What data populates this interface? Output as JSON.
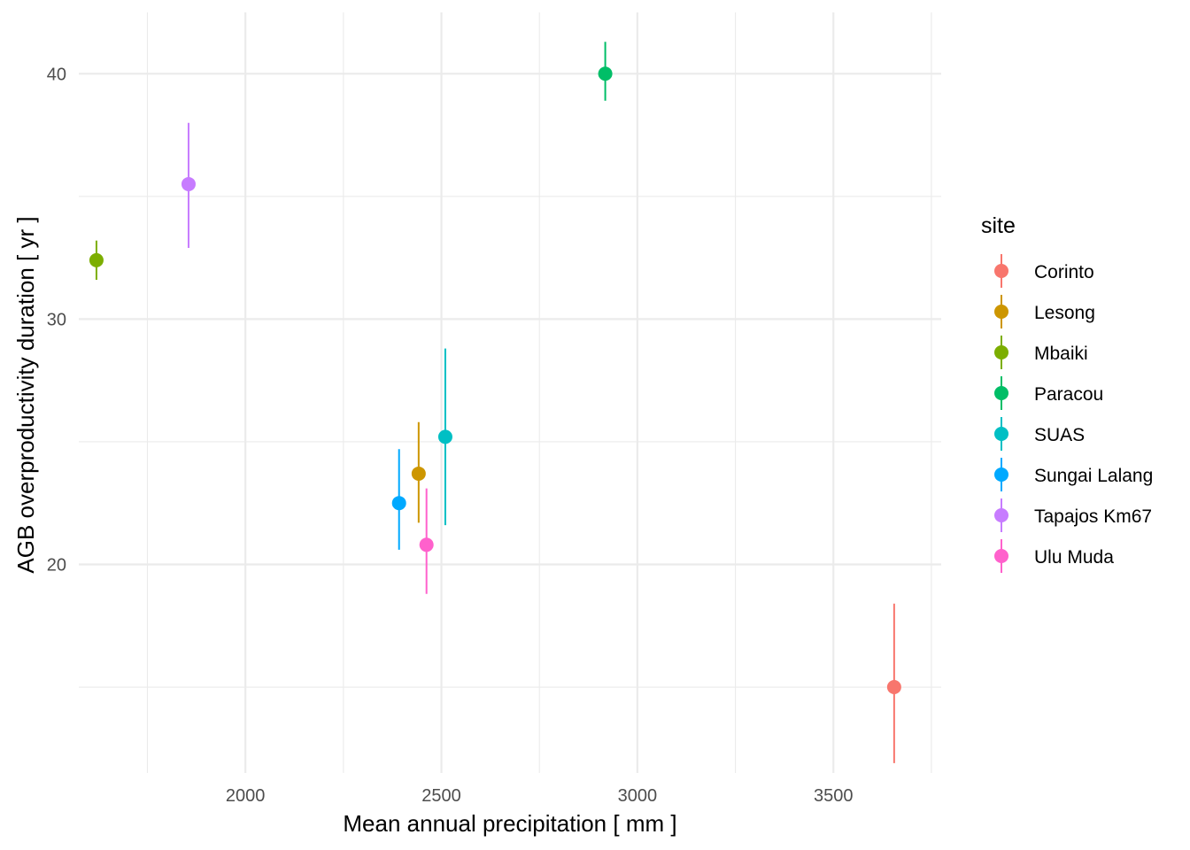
{
  "chart_data": {
    "type": "scatter",
    "title": "",
    "xlabel": "Mean annual precipitation [ mm ]",
    "ylabel": "AGB overproductivity duration [ yr ]",
    "xlim": [
      1575,
      3775
    ],
    "ylim": [
      11.5,
      42.5
    ],
    "x_major_ticks": [
      2000,
      2500,
      3000,
      3500
    ],
    "x_minor_ticks": [
      1750,
      2250,
      2750,
      3250,
      3750
    ],
    "y_major_ticks": [
      20,
      30,
      40
    ],
    "y_minor_ticks": [
      15,
      25,
      35
    ],
    "grid": true,
    "error_bars": true,
    "legend_title": "site",
    "legend_position": "right",
    "series": [
      {
        "name": "Corinto",
        "color": "#F8766D",
        "x": 3655,
        "y": 15.0,
        "ymin": 11.9,
        "ymax": 18.4
      },
      {
        "name": "Lesong",
        "color": "#CD9600",
        "x": 2442,
        "y": 23.7,
        "ymin": 21.7,
        "ymax": 25.8
      },
      {
        "name": "Mbaiki",
        "color": "#7CAE00",
        "x": 1620,
        "y": 32.4,
        "ymin": 31.6,
        "ymax": 33.2
      },
      {
        "name": "Paracou",
        "color": "#00BE67",
        "x": 2918,
        "y": 40.0,
        "ymin": 38.9,
        "ymax": 41.3
      },
      {
        "name": "SUAS",
        "color": "#00BFC4",
        "x": 2510,
        "y": 25.2,
        "ymin": 21.6,
        "ymax": 28.8
      },
      {
        "name": "Sungai Lalang",
        "color": "#00A9FF",
        "x": 2392,
        "y": 22.5,
        "ymin": 20.6,
        "ymax": 24.7
      },
      {
        "name": "Tapajos Km67",
        "color": "#C77CFF",
        "x": 1855,
        "y": 35.5,
        "ymin": 32.9,
        "ymax": 38.0
      },
      {
        "name": "Ulu Muda",
        "color": "#FF61CC",
        "x": 2462,
        "y": 20.8,
        "ymin": 18.8,
        "ymax": 23.1
      }
    ]
  }
}
